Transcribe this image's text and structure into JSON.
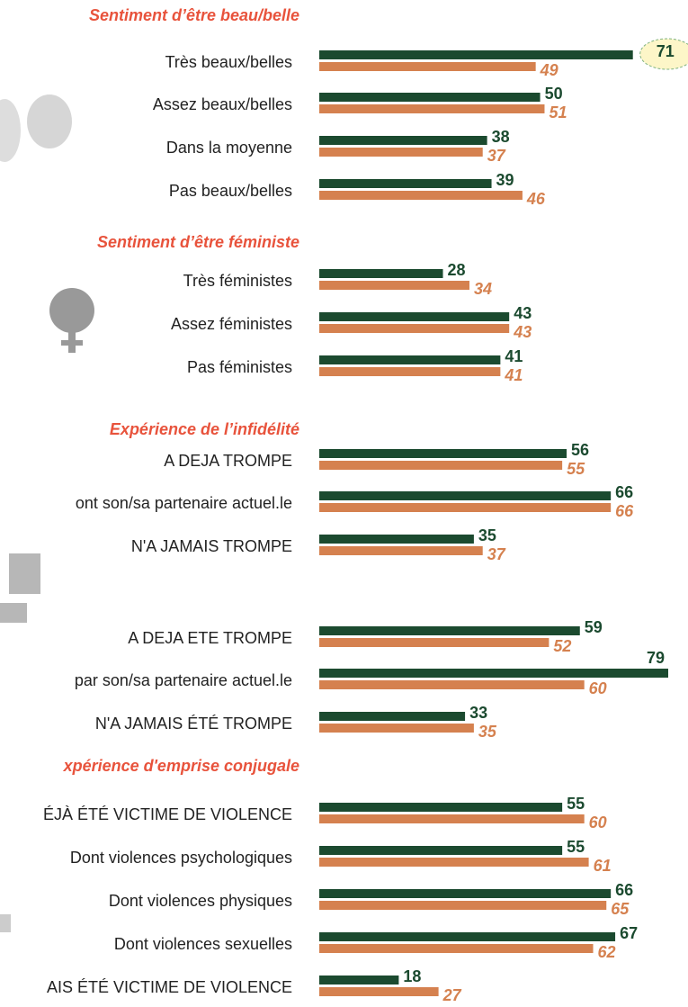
{
  "chart_data": [
    {
      "type": "bar",
      "title": "Sentiment d’être beau/belle",
      "categories": [
        "Très beaux/belles",
        "Assez beaux/belles",
        "Dans la moyenne",
        "Pas beaux/belles"
      ],
      "series": [
        {
          "color": "#1b4a2f",
          "values": [
            71,
            50,
            38,
            39
          ]
        },
        {
          "color": "#d5814f",
          "values": [
            49,
            51,
            37,
            46
          ]
        }
      ]
    },
    {
      "type": "bar",
      "title": "Sentiment d’être féministe",
      "categories": [
        "Très féministes",
        "Assez féministes",
        "Pas féministes"
      ],
      "series": [
        {
          "color": "#1b4a2f",
          "values": [
            28,
            43,
            41
          ]
        },
        {
          "color": "#d5814f",
          "values": [
            34,
            43,
            41
          ]
        }
      ]
    },
    {
      "type": "bar",
      "title": "Expérience de l’infidélité",
      "categories": [
        "A DEJA TROMPE",
        "ont son/sa partenaire actuel.le",
        "N'A JAMAIS TROMPE",
        "A DEJA ETE TROMPE",
        "par son/sa partenaire actuel.le",
        "N'A JAMAIS ÉTÉ TROMPE"
      ],
      "series": [
        {
          "color": "#1b4a2f",
          "values": [
            56,
            66,
            35,
            59,
            79,
            33
          ]
        },
        {
          "color": "#d5814f",
          "values": [
            55,
            66,
            37,
            52,
            60,
            35
          ]
        }
      ]
    },
    {
      "type": "bar",
      "title": "xpérience d'emprise conjugale",
      "categories": [
        "ÉJÀ ÉTÉ VICTIME DE VIOLENCE",
        "Dont violences psychologiques",
        "Dont violences physiques",
        "Dont violences sexuelles",
        "AIS ÉTÉ VICTIME DE VIOLENCE"
      ],
      "series": [
        {
          "color": "#1b4a2f",
          "values": [
            55,
            55,
            66,
            67,
            18
          ]
        },
        {
          "color": "#d5814f",
          "values": [
            60,
            61,
            65,
            62,
            27
          ]
        }
      ]
    }
  ]
}
